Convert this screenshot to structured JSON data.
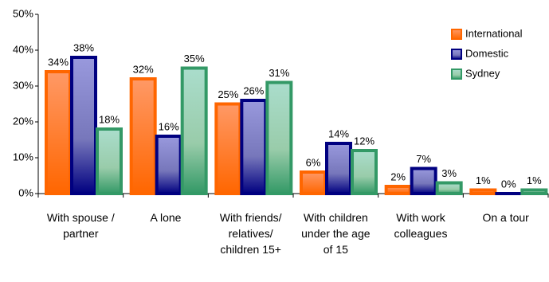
{
  "chart_data": {
    "type": "bar",
    "categories": [
      "With spouse / partner",
      "A lone",
      "With friends/ relatives/ children 15+",
      "With children under the age of 15",
      "With work colleagues",
      "On a tour"
    ],
    "series": [
      {
        "name": "International",
        "color": "#ff6600",
        "values": [
          34,
          32,
          25,
          6,
          2,
          1
        ],
        "value_labels": [
          "34%",
          "32%",
          "25%",
          "6%",
          "2%",
          "1%"
        ]
      },
      {
        "name": "Domestic",
        "color": "#000080",
        "values": [
          38,
          16,
          26,
          14,
          7,
          0
        ],
        "value_labels": [
          "38%",
          "16%",
          "26%",
          "14%",
          "7%",
          "0%"
        ]
      },
      {
        "name": "Sydney",
        "color": "#339966",
        "values": [
          18,
          35,
          31,
          12,
          3,
          1
        ],
        "value_labels": [
          "18%",
          "35%",
          "31%",
          "12%",
          "3%",
          "1%"
        ]
      }
    ],
    "ylim": [
      0,
      50
    ],
    "yticks": [
      {
        "value": 0,
        "label": "0%"
      },
      {
        "value": 10,
        "label": "10%"
      },
      {
        "value": 20,
        "label": "20%"
      },
      {
        "value": 30,
        "label": "30%"
      },
      {
        "value": 40,
        "label": "40%"
      },
      {
        "value": 50,
        "label": "50%"
      }
    ],
    "legend": "upper right"
  }
}
